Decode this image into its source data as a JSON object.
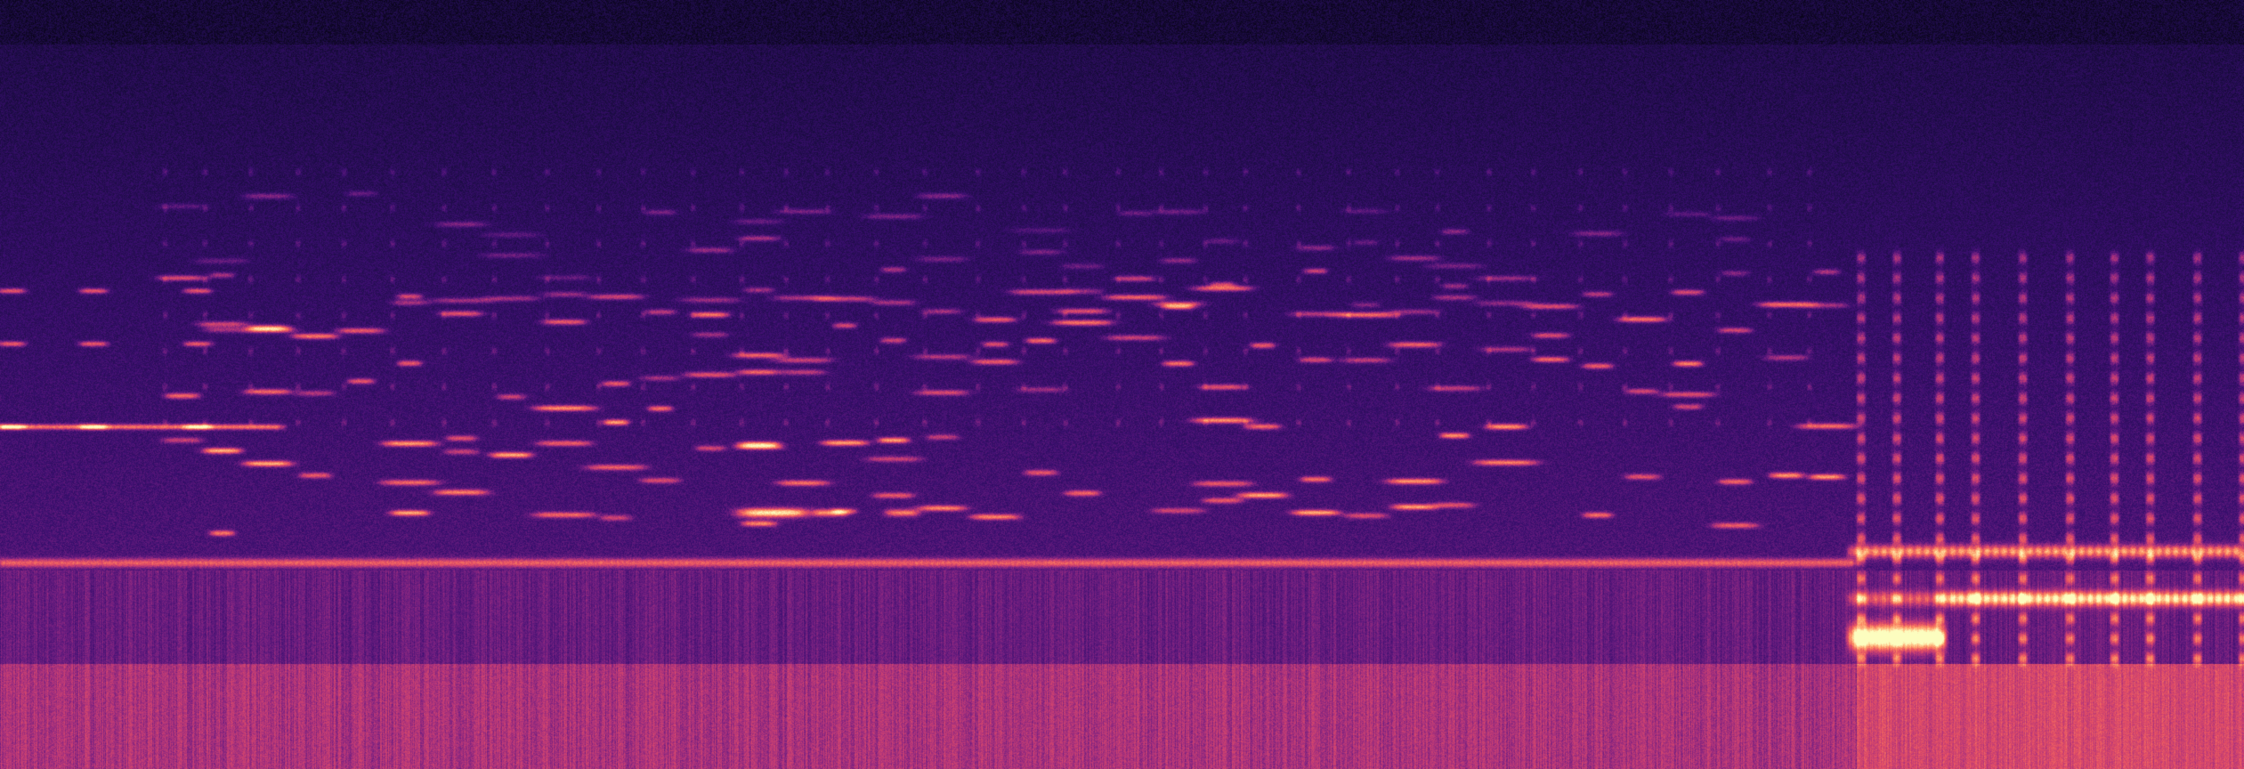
{
  "image": {
    "kind": "spectrogram",
    "colormap": [
      "#000004",
      "#1c0c45",
      "#3b0f70",
      "#721f81",
      "#b5367a",
      "#e55064",
      "#fb8861",
      "#fec287",
      "#fcfdbf"
    ],
    "background_color": "#140838"
  }
}
